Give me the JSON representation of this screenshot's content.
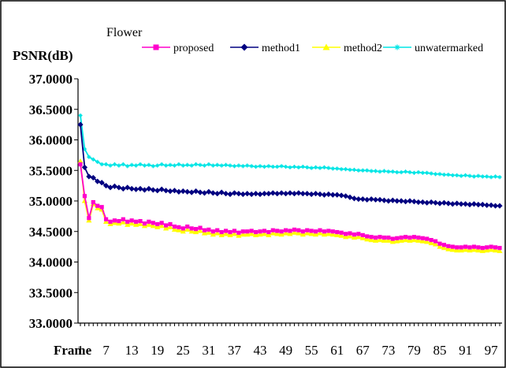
{
  "chart_data": {
    "type": "line",
    "title": "Flower",
    "ylabel": "PSNR(dB)",
    "xlabel": "Frame",
    "ylim": [
      33.0,
      37.0
    ],
    "yticks": [
      "33.0000",
      "33.5000",
      "34.0000",
      "34.5000",
      "35.0000",
      "35.5000",
      "36.0000",
      "36.5000",
      "37.0000"
    ],
    "xticks": [
      1,
      7,
      13,
      19,
      25,
      31,
      37,
      43,
      49,
      55,
      61,
      67,
      73,
      79,
      85,
      91,
      97
    ],
    "legend_position": "top",
    "x": [
      1,
      2,
      3,
      4,
      5,
      6,
      7,
      8,
      9,
      10,
      11,
      12,
      13,
      14,
      15,
      16,
      17,
      18,
      19,
      20,
      21,
      22,
      23,
      24,
      25,
      26,
      27,
      28,
      29,
      30,
      31,
      32,
      33,
      34,
      35,
      36,
      37,
      38,
      39,
      40,
      41,
      42,
      43,
      44,
      45,
      46,
      47,
      48,
      49,
      50,
      51,
      52,
      53,
      54,
      55,
      56,
      57,
      58,
      59,
      60,
      61,
      62,
      63,
      64,
      65,
      66,
      67,
      68,
      69,
      70,
      71,
      72,
      73,
      74,
      75,
      76,
      77,
      78,
      79,
      80,
      81,
      82,
      83,
      84,
      85,
      86,
      87,
      88,
      89,
      90,
      91,
      92,
      93,
      94,
      95,
      96,
      97,
      98,
      99
    ],
    "series": [
      {
        "name": "proposed",
        "color": "#ff00cc",
        "marker": "square",
        "values": [
          35.6,
          35.08,
          34.72,
          34.98,
          34.92,
          34.9,
          34.7,
          34.66,
          34.68,
          34.67,
          34.7,
          34.66,
          34.68,
          34.66,
          34.67,
          34.63,
          34.66,
          34.64,
          34.62,
          34.64,
          34.6,
          34.62,
          34.58,
          34.57,
          34.55,
          34.58,
          34.55,
          34.54,
          34.56,
          34.52,
          34.53,
          34.5,
          34.52,
          34.49,
          34.51,
          34.49,
          34.51,
          34.48,
          34.5,
          34.5,
          34.51,
          34.49,
          34.5,
          34.51,
          34.49,
          34.52,
          34.51,
          34.5,
          34.52,
          34.51,
          34.53,
          34.52,
          34.5,
          34.52,
          34.51,
          34.5,
          34.52,
          34.5,
          34.51,
          34.5,
          34.49,
          34.48,
          34.46,
          34.47,
          34.45,
          34.46,
          34.44,
          34.42,
          34.41,
          34.4,
          34.41,
          34.4,
          34.4,
          34.38,
          34.39,
          34.4,
          34.41,
          34.4,
          34.41,
          34.4,
          34.39,
          34.38,
          34.36,
          34.34,
          34.3,
          34.28,
          34.26,
          34.25,
          34.24,
          34.24,
          34.25,
          34.24,
          34.25,
          34.24,
          34.23,
          34.24,
          34.25,
          34.24,
          34.23
        ]
      },
      {
        "name": "method1",
        "color": "#000080",
        "marker": "diamond",
        "values": [
          36.25,
          35.55,
          35.4,
          35.38,
          35.32,
          35.3,
          35.25,
          35.22,
          35.24,
          35.22,
          35.2,
          35.22,
          35.2,
          35.19,
          35.2,
          35.18,
          35.2,
          35.18,
          35.17,
          35.19,
          35.17,
          35.16,
          35.17,
          35.15,
          35.16,
          35.15,
          35.14,
          35.16,
          35.14,
          35.13,
          35.15,
          35.13,
          35.12,
          35.14,
          35.12,
          35.11,
          35.13,
          35.12,
          35.11,
          35.12,
          35.11,
          35.12,
          35.11,
          35.12,
          35.12,
          35.13,
          35.12,
          35.13,
          35.12,
          35.13,
          35.12,
          35.13,
          35.12,
          35.12,
          35.11,
          35.12,
          35.11,
          35.1,
          35.11,
          35.1,
          35.1,
          35.09,
          35.08,
          35.06,
          35.04,
          35.03,
          35.03,
          35.02,
          35.03,
          35.02,
          35.02,
          35.01,
          35.0,
          35.01,
          35.0,
          35.0,
          34.99,
          35.0,
          34.99,
          34.98,
          34.98,
          34.97,
          34.98,
          34.97,
          34.96,
          34.97,
          34.96,
          34.95,
          34.96,
          34.95,
          34.95,
          34.94,
          34.95,
          34.94,
          34.94,
          34.93,
          34.93,
          34.92,
          34.92
        ]
      },
      {
        "name": "method2",
        "color": "#ffff00",
        "marker": "triangle",
        "values": [
          35.65,
          35.0,
          34.68,
          34.95,
          34.88,
          34.86,
          34.66,
          34.62,
          34.64,
          34.63,
          34.65,
          34.61,
          34.63,
          34.61,
          34.62,
          34.59,
          34.61,
          34.59,
          34.57,
          34.59,
          34.55,
          34.57,
          34.53,
          34.52,
          34.5,
          34.53,
          34.5,
          34.49,
          34.51,
          34.47,
          34.48,
          34.45,
          34.47,
          34.44,
          34.46,
          34.44,
          34.46,
          34.43,
          34.45,
          34.45,
          34.46,
          34.44,
          34.45,
          34.46,
          34.44,
          34.47,
          34.46,
          34.45,
          34.47,
          34.46,
          34.48,
          34.47,
          34.45,
          34.47,
          34.46,
          34.45,
          34.47,
          34.45,
          34.46,
          34.45,
          34.44,
          34.43,
          34.41,
          34.42,
          34.4,
          34.41,
          34.39,
          34.37,
          34.36,
          34.35,
          34.36,
          34.35,
          34.35,
          34.33,
          34.34,
          34.35,
          34.36,
          34.35,
          34.36,
          34.35,
          34.34,
          34.33,
          34.31,
          34.29,
          34.25,
          34.23,
          34.21,
          34.2,
          34.19,
          34.19,
          34.2,
          34.19,
          34.2,
          34.19,
          34.18,
          34.19,
          34.2,
          34.19,
          34.18
        ]
      },
      {
        "name": "unwatermarked",
        "color": "#00e5e5",
        "marker": "asterisk",
        "values": [
          36.4,
          35.85,
          35.72,
          35.68,
          35.64,
          35.6,
          35.6,
          35.58,
          35.6,
          35.58,
          35.6,
          35.57,
          35.59,
          35.58,
          35.6,
          35.58,
          35.59,
          35.57,
          35.58,
          35.6,
          35.58,
          35.59,
          35.58,
          35.6,
          35.58,
          35.59,
          35.58,
          35.6,
          35.59,
          35.58,
          35.6,
          35.58,
          35.59,
          35.58,
          35.59,
          35.58,
          35.57,
          35.58,
          35.57,
          35.58,
          35.57,
          35.56,
          35.57,
          35.56,
          35.57,
          35.56,
          35.56,
          35.57,
          35.56,
          35.55,
          35.56,
          35.55,
          35.56,
          35.55,
          35.54,
          35.55,
          35.54,
          35.55,
          35.54,
          35.53,
          35.53,
          35.52,
          35.52,
          35.51,
          35.51,
          35.5,
          35.5,
          35.5,
          35.49,
          35.49,
          35.48,
          35.49,
          35.48,
          35.48,
          35.47,
          35.47,
          35.48,
          35.47,
          35.46,
          35.47,
          35.46,
          35.46,
          35.45,
          35.44,
          35.44,
          35.43,
          35.43,
          35.42,
          35.42,
          35.41,
          35.42,
          35.41,
          35.4,
          35.41,
          35.4,
          35.4,
          35.39,
          35.4,
          35.39
        ]
      }
    ]
  }
}
